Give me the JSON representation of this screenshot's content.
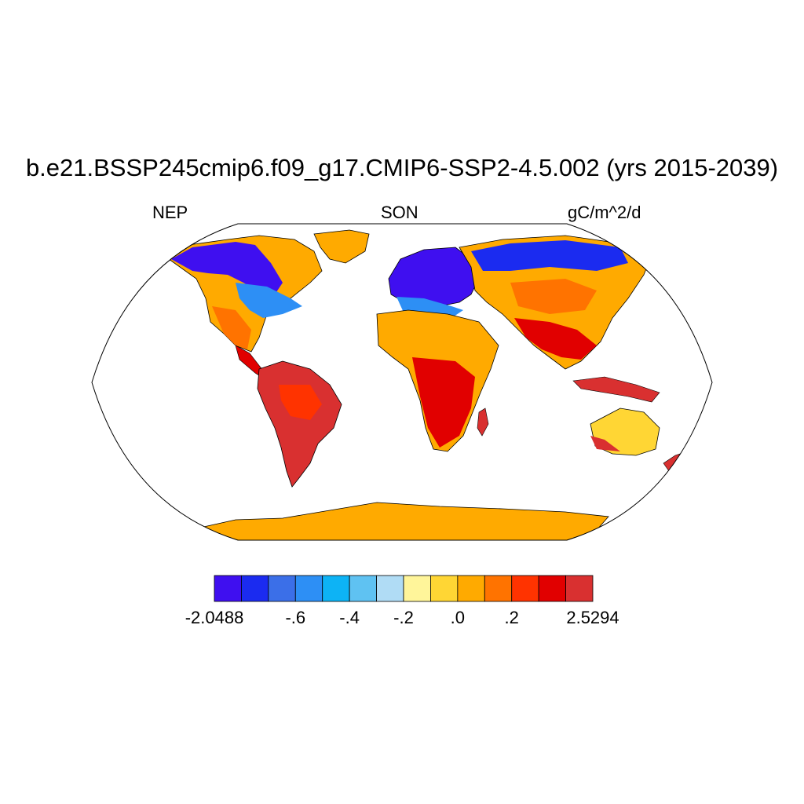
{
  "title": "b.e21.BSSP245cmip6.f09_g17.CMIP6-SSP2-4.5.002 (yrs 2015-2039)",
  "left_label": "NEP",
  "center_label": "SON",
  "right_label": "gC/m^2/d",
  "colorbar": {
    "colors": [
      "#3f0ff0",
      "#1b2bf0",
      "#3b6fe8",
      "#2d8ff5",
      "#0db3f5",
      "#5fc2f2",
      "#b0dcf5",
      "#fff59a",
      "#ffd634",
      "#ffaa00",
      "#ff7300",
      "#ff3300",
      "#e10000",
      "#d93030"
    ],
    "tick_labels": [
      "-2.0488",
      "-.6",
      "-.4",
      "-.2",
      ".0",
      ".2",
      "2.5294"
    ],
    "tick_boundaries": [
      0,
      3,
      5,
      7,
      9,
      11,
      14
    ]
  },
  "map": {
    "projection": "Robinson",
    "ocean_color": "#ffffff",
    "antarctica_color": "#ffaa00"
  }
}
